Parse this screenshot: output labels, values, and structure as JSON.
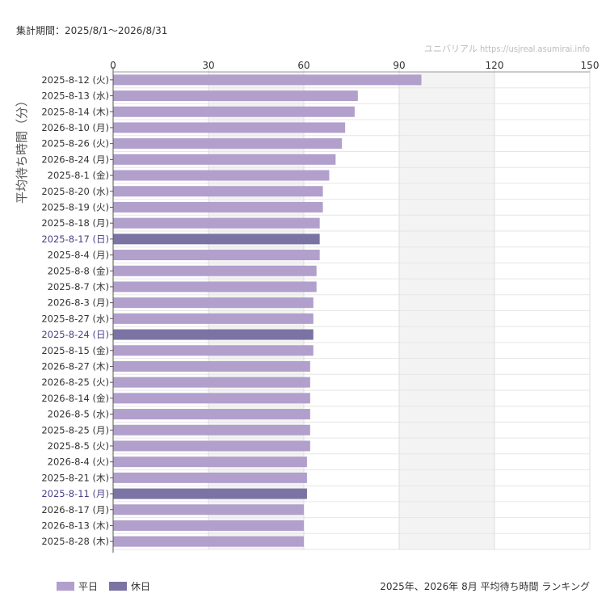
{
  "header": {
    "period": "集計期間：2025/8/1〜2026/8/31",
    "source": "ユニバリアル  https://usjreal.asumirai.info"
  },
  "legend": {
    "weekday_label": "平日",
    "holiday_label": "休日"
  },
  "caption": "2025年、2026年 8月 平均待ち時間 ランキング",
  "colors": {
    "weekday": "#b19fcc",
    "holiday": "#7b73a3",
    "holiday_text": "#4a3f85",
    "band": "#f3f3f3",
    "grid": "#dddddd"
  },
  "chart_data": {
    "type": "bar",
    "orientation": "horizontal",
    "ylabel": "平均待ち時間（分）",
    "xlim": [
      0,
      150
    ],
    "xticks": [
      0,
      30,
      60,
      90,
      120,
      150
    ],
    "shaded_ranges": [
      [
        30,
        60
      ],
      [
        90,
        120
      ]
    ],
    "categories": [
      "2025-8-12 (火)",
      "2025-8-13 (水)",
      "2025-8-14 (木)",
      "2026-8-10 (月)",
      "2025-8-26 (火)",
      "2026-8-24 (月)",
      "2025-8-1 (金)",
      "2025-8-20 (水)",
      "2025-8-19 (火)",
      "2025-8-18 (月)",
      "2025-8-17 (日)",
      "2025-8-4 (月)",
      "2025-8-8 (金)",
      "2025-8-7 (木)",
      "2026-8-3 (月)",
      "2025-8-27 (水)",
      "2025-8-24 (日)",
      "2025-8-15 (金)",
      "2026-8-27 (木)",
      "2026-8-25 (火)",
      "2026-8-14 (金)",
      "2026-8-5 (水)",
      "2025-8-25 (月)",
      "2025-8-5 (火)",
      "2026-8-4 (火)",
      "2025-8-21 (木)",
      "2025-8-11 (月)",
      "2026-8-17 (月)",
      "2026-8-13 (木)",
      "2025-8-28 (木)"
    ],
    "values": [
      97,
      77,
      76,
      73,
      72,
      70,
      68,
      66,
      66,
      65,
      65,
      65,
      64,
      64,
      63,
      63,
      63,
      63,
      62,
      62,
      62,
      62,
      62,
      62,
      61,
      61,
      61,
      60,
      60,
      60
    ],
    "holiday": [
      false,
      false,
      false,
      false,
      false,
      false,
      false,
      false,
      false,
      false,
      true,
      false,
      false,
      false,
      false,
      false,
      true,
      false,
      false,
      false,
      false,
      false,
      false,
      false,
      false,
      false,
      true,
      false,
      false,
      false
    ]
  }
}
